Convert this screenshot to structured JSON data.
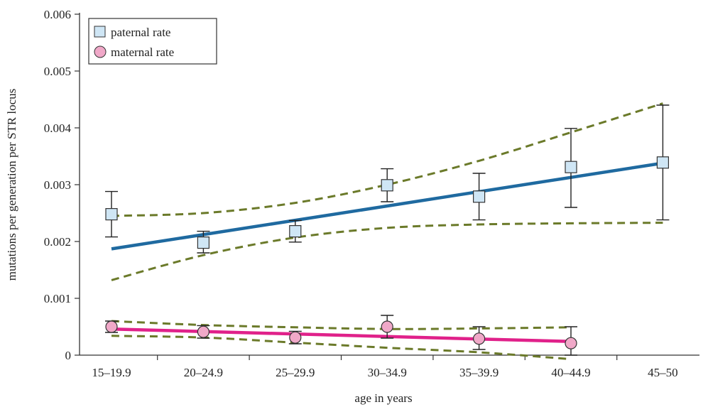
{
  "chart_data": {
    "type": "line",
    "xlabel": "age in years",
    "ylabel": "mutations per generation per STR locus",
    "categories": [
      "15–19.9",
      "20–24.9",
      "25–29.9",
      "30–34.9",
      "35–39.9",
      "40–44.9",
      "45–50"
    ],
    "ylim": [
      0,
      0.006
    ],
    "yticks": [
      {
        "value": 0,
        "label": "0"
      },
      {
        "value": 0.001,
        "label": "0.001"
      },
      {
        "value": 0.002,
        "label": "0.002"
      },
      {
        "value": 0.003,
        "label": "0.003"
      },
      {
        "value": 0.004,
        "label": "0.004"
      },
      {
        "value": 0.005,
        "label": "0.005"
      },
      {
        "value": 0.006,
        "label": "0.006"
      }
    ],
    "grid": false,
    "legend_position": "top-left",
    "series": [
      {
        "name": "paternal rate",
        "marker": "square",
        "marker_color": "#cfe6f5",
        "line_color": "#1f6aa0",
        "points": [
          {
            "category": "15–19.9",
            "y": 0.00248,
            "err_low": 0.00208,
            "err_high": 0.00288
          },
          {
            "category": "20–24.9",
            "y": 0.00198,
            "err_low": 0.0018,
            "err_high": 0.00218
          },
          {
            "category": "25–29.9",
            "y": 0.00218,
            "err_low": 0.00199,
            "err_high": 0.00237
          },
          {
            "category": "30–34.9",
            "y": 0.00299,
            "err_low": 0.0027,
            "err_high": 0.00328
          },
          {
            "category": "35–39.9",
            "y": 0.00279,
            "err_low": 0.00238,
            "err_high": 0.0032
          },
          {
            "category": "40–44.9",
            "y": 0.00331,
            "err_low": 0.0026,
            "err_high": 0.00399
          },
          {
            "category": "45–50",
            "y": 0.00339,
            "err_low": 0.00238,
            "err_high": 0.0044
          }
        ],
        "fit": {
          "start": {
            "category": "15–19.9",
            "y": 0.00187
          },
          "end": {
            "category": "45–50",
            "y": 0.00338
          }
        },
        "ci_upper": [
          0.00245,
          0.0025,
          0.00268,
          0.003,
          0.00342,
          0.00392,
          0.00443
        ],
        "ci_lower": [
          0.00132,
          0.00176,
          0.00207,
          0.00224,
          0.0023,
          0.00232,
          0.00233
        ]
      },
      {
        "name": "maternal rate",
        "marker": "circle",
        "marker_color": "#f0a8c8",
        "line_color": "#e0218a",
        "points": [
          {
            "category": "15–19.9",
            "y": 0.0005,
            "err_low": 0.0004,
            "err_high": 0.0006
          },
          {
            "category": "20–24.9",
            "y": 0.00041,
            "err_low": 0.0003,
            "err_high": 0.00052
          },
          {
            "category": "25–29.9",
            "y": 0.00031,
            "err_low": 0.0002,
            "err_high": 0.00042
          },
          {
            "category": "30–34.9",
            "y": 0.0005,
            "err_low": 0.0003,
            "err_high": 0.0007
          },
          {
            "category": "35–39.9",
            "y": 0.00029,
            "err_low": 0.0001,
            "err_high": 0.0005
          },
          {
            "category": "40–44.9",
            "y": 0.00021,
            "err_low": 0.0,
            "err_high": 0.0005
          }
        ],
        "fit": {
          "start": {
            "category": "15–19.9",
            "y": 0.00046
          },
          "end": {
            "category": "40–44.9",
            "y": 0.00024
          }
        },
        "ci_upper": [
          0.0006,
          0.00053,
          0.00049,
          0.00046,
          0.00047,
          0.00049
        ],
        "ci_lower": [
          0.00034,
          0.00031,
          0.00022,
          0.00013,
          5e-05,
          -7e-05
        ]
      }
    ],
    "ci_color": "#6b7a2a"
  }
}
